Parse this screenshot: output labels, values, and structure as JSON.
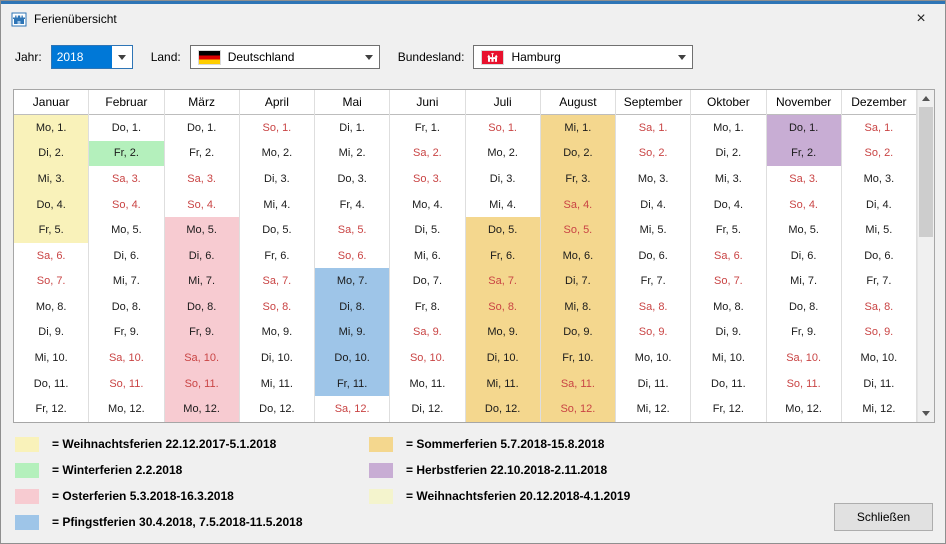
{
  "window": {
    "title": "Ferienübersicht",
    "close_glyph": "×"
  },
  "controls": {
    "year_label": "Jahr:",
    "year_value": "2018",
    "country_label": "Land:",
    "country_value": "Deutschland",
    "state_label": "Bundesland:",
    "state_value": "Hamburg"
  },
  "colors": {
    "window_accent": "#2e75b6",
    "selection_blue": "#0078d7",
    "weekend_red": "#c94444",
    "holiday": {
      "weihnachten1": "#f9f2ba",
      "winter": "#b4f0bc",
      "ostern": "#f7cbd1",
      "pfingsten": "#9ec5e8",
      "sommer": "#f4d78e",
      "herbst": "#c8add4",
      "weihnachten2": "#f4f4cd"
    },
    "flag_germany": [
      "#000000",
      "#dd0000",
      "#ffce00"
    ],
    "flag_hamburg_red": "#e8112d"
  },
  "calendar": {
    "months": [
      {
        "name": "Januar",
        "days": [
          "Mo, 1.",
          "Di, 2.",
          "Mi, 3.",
          "Do, 4.",
          "Fr, 5.",
          "Sa, 6.",
          "So, 7.",
          "Mo, 8.",
          "Di, 9.",
          "Mi, 10.",
          "Do, 11.",
          "Fr, 12."
        ],
        "highlight": {
          "start": 1,
          "end": 5,
          "color": "weihnachten1"
        }
      },
      {
        "name": "Februar",
        "days": [
          "Do, 1.",
          "Fr, 2.",
          "Sa, 3.",
          "So, 4.",
          "Mo, 5.",
          "Di, 6.",
          "Mi, 7.",
          "Do, 8.",
          "Fr, 9.",
          "Sa, 10.",
          "So, 11.",
          "Mo, 12."
        ],
        "highlight": {
          "start": 2,
          "end": 2,
          "color": "winter"
        }
      },
      {
        "name": "März",
        "days": [
          "Do, 1.",
          "Fr, 2.",
          "Sa, 3.",
          "So, 4.",
          "Mo, 5.",
          "Di, 6.",
          "Mi, 7.",
          "Do, 8.",
          "Fr, 9.",
          "Sa, 10.",
          "So, 11.",
          "Mo, 12."
        ],
        "highlight": {
          "start": 5,
          "end": 12,
          "color": "ostern"
        }
      },
      {
        "name": "April",
        "days": [
          "So, 1.",
          "Mo, 2.",
          "Di, 3.",
          "Mi, 4.",
          "Do, 5.",
          "Fr, 6.",
          "Sa, 7.",
          "So, 8.",
          "Mo, 9.",
          "Di, 10.",
          "Mi, 11.",
          "Do, 12."
        ],
        "highlight": null
      },
      {
        "name": "Mai",
        "days": [
          "Di, 1.",
          "Mi, 2.",
          "Do, 3.",
          "Fr, 4.",
          "Sa, 5.",
          "So, 6.",
          "Mo, 7.",
          "Di, 8.",
          "Mi, 9.",
          "Do, 10.",
          "Fr, 11.",
          "Sa, 12."
        ],
        "highlight": {
          "start": 7,
          "end": 11,
          "color": "pfingsten"
        }
      },
      {
        "name": "Juni",
        "days": [
          "Fr, 1.",
          "Sa, 2.",
          "So, 3.",
          "Mo, 4.",
          "Di, 5.",
          "Mi, 6.",
          "Do, 7.",
          "Fr, 8.",
          "Sa, 9.",
          "So, 10.",
          "Mo, 11.",
          "Di, 12."
        ],
        "highlight": null
      },
      {
        "name": "Juli",
        "days": [
          "So, 1.",
          "Mo, 2.",
          "Di, 3.",
          "Mi, 4.",
          "Do, 5.",
          "Fr, 6.",
          "Sa, 7.",
          "So, 8.",
          "Mo, 9.",
          "Di, 10.",
          "Mi, 11.",
          "Do, 12."
        ],
        "highlight": {
          "start": 5,
          "end": 12,
          "color": "sommer"
        }
      },
      {
        "name": "August",
        "days": [
          "Mi, 1.",
          "Do, 2.",
          "Fr, 3.",
          "Sa, 4.",
          "So, 5.",
          "Mo, 6.",
          "Di, 7.",
          "Mi, 8.",
          "Do, 9.",
          "Fr, 10.",
          "Sa, 11.",
          "So, 12."
        ],
        "highlight": {
          "start": 1,
          "end": 12,
          "color": "sommer"
        }
      },
      {
        "name": "September",
        "days": [
          "Sa, 1.",
          "So, 2.",
          "Mo, 3.",
          "Di, 4.",
          "Mi, 5.",
          "Do, 6.",
          "Fr, 7.",
          "Sa, 8.",
          "So, 9.",
          "Mo, 10.",
          "Di, 11.",
          "Mi, 12."
        ],
        "highlight": null
      },
      {
        "name": "Oktober",
        "days": [
          "Mo, 1.",
          "Di, 2.",
          "Mi, 3.",
          "Do, 4.",
          "Fr, 5.",
          "Sa, 6.",
          "So, 7.",
          "Mo, 8.",
          "Di, 9.",
          "Mi, 10.",
          "Do, 11.",
          "Fr, 12."
        ],
        "highlight": null
      },
      {
        "name": "November",
        "days": [
          "Do, 1.",
          "Fr, 2.",
          "Sa, 3.",
          "So, 4.",
          "Mo, 5.",
          "Di, 6.",
          "Mi, 7.",
          "Do, 8.",
          "Fr, 9.",
          "Sa, 10.",
          "So, 11.",
          "Mo, 12."
        ],
        "highlight": {
          "start": 1,
          "end": 2,
          "color": "herbst"
        }
      },
      {
        "name": "Dezember",
        "days": [
          "Sa, 1.",
          "So, 2.",
          "Mo, 3.",
          "Di, 4.",
          "Mi, 5.",
          "Do, 6.",
          "Fr, 7.",
          "Sa, 8.",
          "So, 9.",
          "Mo, 10.",
          "Di, 11.",
          "Mi, 12."
        ],
        "highlight": null
      }
    ]
  },
  "legend": {
    "left": [
      {
        "color": "weihnachten1",
        "text": "= Weihnachtsferien 22.12.2017-5.1.2018"
      },
      {
        "color": "winter",
        "text": "= Winterferien 2.2.2018"
      },
      {
        "color": "ostern",
        "text": "= Osterferien 5.3.2018-16.3.2018"
      },
      {
        "color": "pfingsten",
        "text": "= Pfingstferien 30.4.2018, 7.5.2018-11.5.2018"
      }
    ],
    "right": [
      {
        "color": "sommer",
        "text": "= Sommerferien 5.7.2018-15.8.2018"
      },
      {
        "color": "herbst",
        "text": "= Herbstferien 22.10.2018-2.11.2018"
      },
      {
        "color": "weihnachten2",
        "text": "= Weihnachtsferien 20.12.2018-4.1.2019"
      }
    ]
  },
  "footer": {
    "close_button": "Schließen"
  }
}
